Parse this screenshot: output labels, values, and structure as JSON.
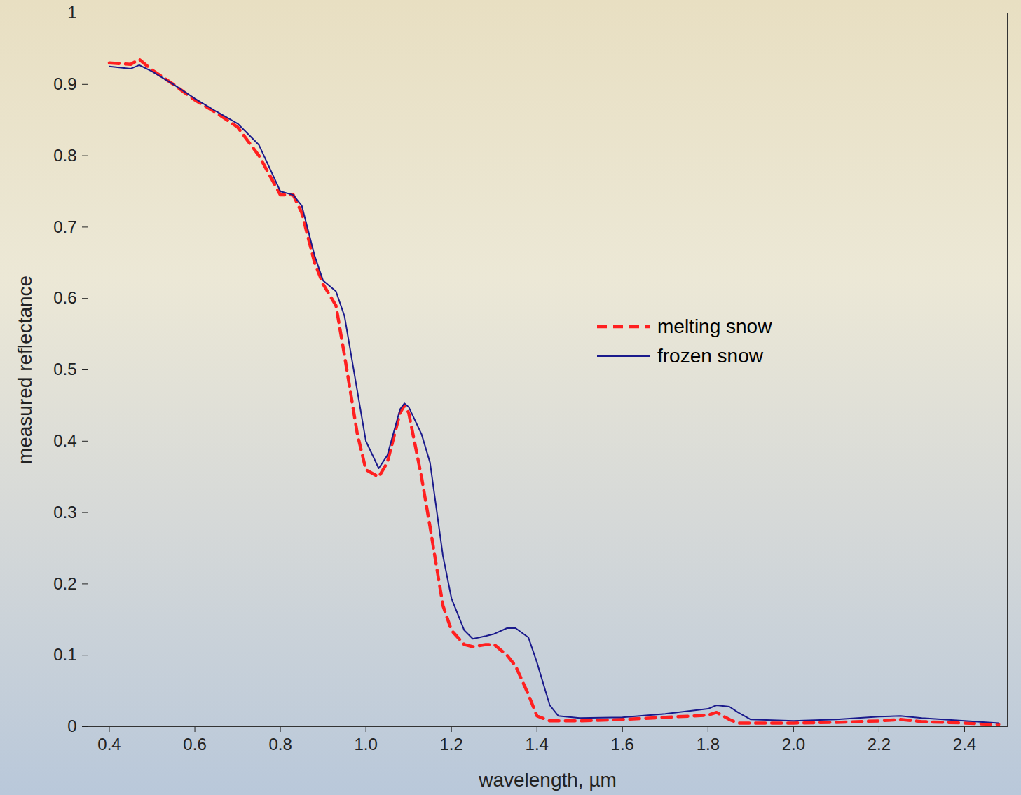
{
  "chart_data": {
    "type": "line",
    "xlabel": "wavelength, µm",
    "ylabel": "measured reflectance",
    "xlim": [
      0.35,
      2.5
    ],
    "ylim": [
      0,
      1
    ],
    "xticks": [
      0.4,
      0.6,
      0.8,
      {
        "value": 1,
        "label": "1.0"
      },
      1.2,
      1.4,
      1.6,
      1.8,
      {
        "value": 2,
        "label": "2.0"
      },
      2.2,
      2.4
    ],
    "yticks": [
      0,
      0.1,
      0.2,
      0.3,
      0.4,
      0.5,
      0.6,
      0.7,
      0.8,
      0.9,
      1
    ],
    "legend": "right",
    "x": [
      0.4,
      0.45,
      0.47,
      0.5,
      0.55,
      0.6,
      0.65,
      0.7,
      0.75,
      0.8,
      0.83,
      0.85,
      0.88,
      0.9,
      0.93,
      0.95,
      0.98,
      1.0,
      1.03,
      1.05,
      1.08,
      1.09,
      1.1,
      1.13,
      1.15,
      1.18,
      1.2,
      1.23,
      1.25,
      1.28,
      1.3,
      1.33,
      1.35,
      1.38,
      1.4,
      1.43,
      1.45,
      1.5,
      1.6,
      1.7,
      1.8,
      1.82,
      1.85,
      1.87,
      1.9,
      2.0,
      2.1,
      2.2,
      2.25,
      2.3,
      2.4,
      2.48
    ],
    "series": [
      {
        "name": "melting snow",
        "color": "#ff2020",
        "line_style": "dashed",
        "values": [
          0.93,
          0.928,
          0.935,
          0.92,
          0.9,
          0.878,
          0.86,
          0.84,
          0.8,
          0.745,
          0.745,
          0.72,
          0.65,
          0.62,
          0.59,
          0.52,
          0.41,
          0.36,
          0.35,
          0.37,
          0.44,
          0.45,
          0.44,
          0.35,
          0.28,
          0.17,
          0.135,
          0.115,
          0.112,
          0.115,
          0.115,
          0.1,
          0.085,
          0.045,
          0.015,
          0.008,
          0.008,
          0.008,
          0.01,
          0.013,
          0.016,
          0.02,
          0.01,
          0.005,
          0.005,
          0.005,
          0.006,
          0.008,
          0.01,
          0.007,
          0.005,
          0.003
        ]
      },
      {
        "name": "frozen snow",
        "color": "#1a1a8c",
        "line_style": "solid",
        "values": [
          0.925,
          0.922,
          0.927,
          0.918,
          0.9,
          0.88,
          0.862,
          0.845,
          0.815,
          0.75,
          0.745,
          0.73,
          0.66,
          0.625,
          0.61,
          0.575,
          0.47,
          0.4,
          0.362,
          0.38,
          0.445,
          0.453,
          0.448,
          0.41,
          0.37,
          0.24,
          0.18,
          0.135,
          0.123,
          0.127,
          0.13,
          0.138,
          0.138,
          0.125,
          0.09,
          0.03,
          0.015,
          0.012,
          0.013,
          0.018,
          0.025,
          0.03,
          0.028,
          0.02,
          0.01,
          0.008,
          0.01,
          0.014,
          0.015,
          0.012,
          0.008,
          0.005
        ]
      }
    ]
  }
}
